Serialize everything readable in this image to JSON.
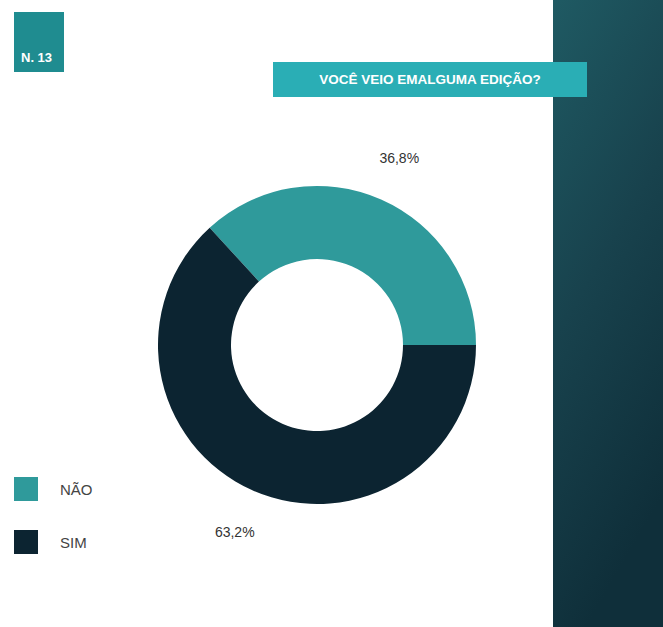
{
  "chart_data": {
    "type": "pie",
    "title": "VOCÊ VEIO EMALGUMA EDIÇÃO?",
    "annotations": [
      "N. 13"
    ],
    "categories": [
      "NÃO",
      "SIM"
    ],
    "values": [
      36.8,
      63.2
    ],
    "value_labels": [
      "36,8%",
      "63,2%"
    ],
    "colors": [
      "#2f9a9b",
      "#0c2431"
    ],
    "data_labels": true,
    "legend": "bottom-left"
  }
}
